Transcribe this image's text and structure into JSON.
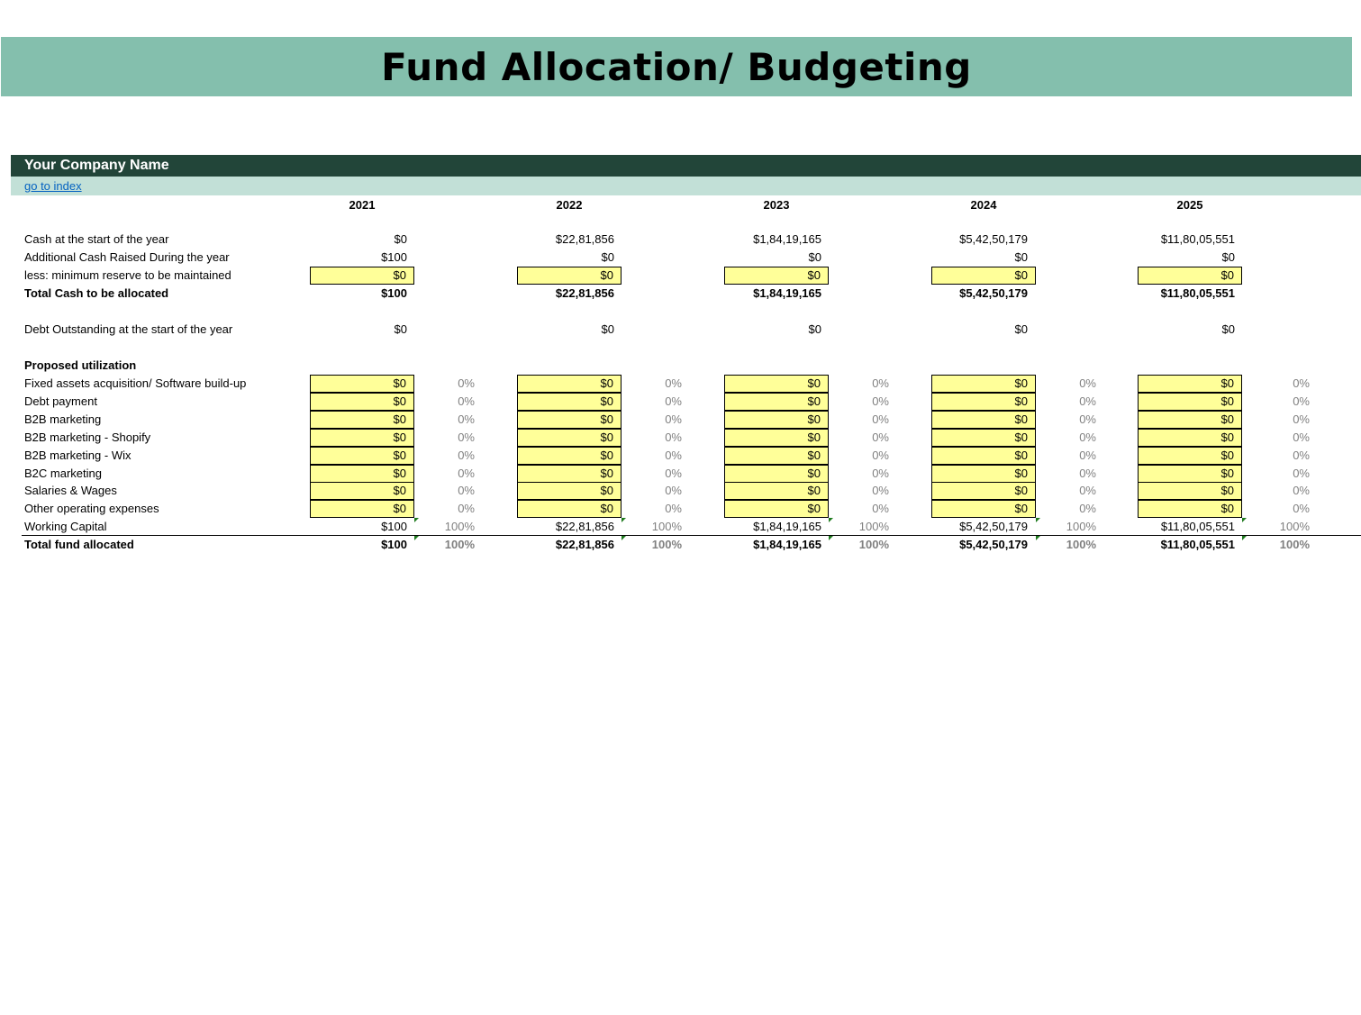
{
  "title": "Fund Allocation/ Budgeting",
  "company_name": "Your Company Name",
  "index_link": "go to index",
  "years": [
    "2021",
    "2022",
    "2023",
    "2024",
    "2025"
  ],
  "colors": {
    "title_band": "#84bfad",
    "company_band": "#224539",
    "index_band": "#c2e0d7",
    "input_cell": "#ffff99"
  },
  "rows": {
    "cash_start": {
      "label": "Cash at the start of the year",
      "values": [
        "$0",
        "$22,81,856",
        "$1,84,19,165",
        "$5,42,50,179",
        "$11,80,05,551"
      ]
    },
    "additional_cash": {
      "label": "Additional Cash Raised During the year",
      "values": [
        "$100",
        "$0",
        "$0",
        "$0",
        "$0"
      ]
    },
    "min_reserve": {
      "label": "less: minimum reserve to be maintained",
      "values": [
        "$0",
        "$0",
        "$0",
        "$0",
        "$0"
      ]
    },
    "total_cash": {
      "label": "Total Cash to be allocated",
      "values": [
        "$100",
        "$22,81,856",
        "$1,84,19,165",
        "$5,42,50,179",
        "$11,80,05,551"
      ]
    },
    "debt_outstanding": {
      "label": "Debt Outstanding at the start of the year",
      "values": [
        "$0",
        "$0",
        "$0",
        "$0",
        "$0"
      ]
    },
    "proposed_heading": "Proposed utilization"
  },
  "utilization": [
    {
      "label": "Fixed assets acquisition/ Software build-up",
      "values": [
        "$0",
        "$0",
        "$0",
        "$0",
        "$0"
      ],
      "pcts": [
        "0%",
        "0%",
        "0%",
        "0%",
        "0%"
      ]
    },
    {
      "label": "Debt payment",
      "values": [
        "$0",
        "$0",
        "$0",
        "$0",
        "$0"
      ],
      "pcts": [
        "0%",
        "0%",
        "0%",
        "0%",
        "0%"
      ]
    },
    {
      "label": "B2B marketing",
      "values": [
        "$0",
        "$0",
        "$0",
        "$0",
        "$0"
      ],
      "pcts": [
        "0%",
        "0%",
        "0%",
        "0%",
        "0%"
      ]
    },
    {
      "label": "B2B marketing - Shopify",
      "values": [
        "$0",
        "$0",
        "$0",
        "$0",
        "$0"
      ],
      "pcts": [
        "0%",
        "0%",
        "0%",
        "0%",
        "0%"
      ]
    },
    {
      "label": "B2B marketing - Wix",
      "values": [
        "$0",
        "$0",
        "$0",
        "$0",
        "$0"
      ],
      "pcts": [
        "0%",
        "0%",
        "0%",
        "0%",
        "0%"
      ]
    },
    {
      "label": "B2C marketing",
      "values": [
        "$0",
        "$0",
        "$0",
        "$0",
        "$0"
      ],
      "pcts": [
        "0%",
        "0%",
        "0%",
        "0%",
        "0%"
      ]
    },
    {
      "label": "Salaries & Wages",
      "values": [
        "$0",
        "$0",
        "$0",
        "$0",
        "$0"
      ],
      "pcts": [
        "0%",
        "0%",
        "0%",
        "0%",
        "0%"
      ]
    },
    {
      "label": "Other operating expenses",
      "values": [
        "$0",
        "$0",
        "$0",
        "$0",
        "$0"
      ],
      "pcts": [
        "0%",
        "0%",
        "0%",
        "0%",
        "0%"
      ]
    }
  ],
  "working_capital": {
    "label": "Working Capital",
    "values": [
      "$100",
      "$22,81,856",
      "$1,84,19,165",
      "$5,42,50,179",
      "$11,80,05,551"
    ],
    "pcts": [
      "100%",
      "100%",
      "100%",
      "100%",
      "100%"
    ]
  },
  "total_allocated": {
    "label": "Total fund allocated",
    "values": [
      "$100",
      "$22,81,856",
      "$1,84,19,165",
      "$5,42,50,179",
      "$11,80,05,551"
    ],
    "pcts": [
      "100%",
      "100%",
      "100%",
      "100%",
      "100%"
    ]
  }
}
